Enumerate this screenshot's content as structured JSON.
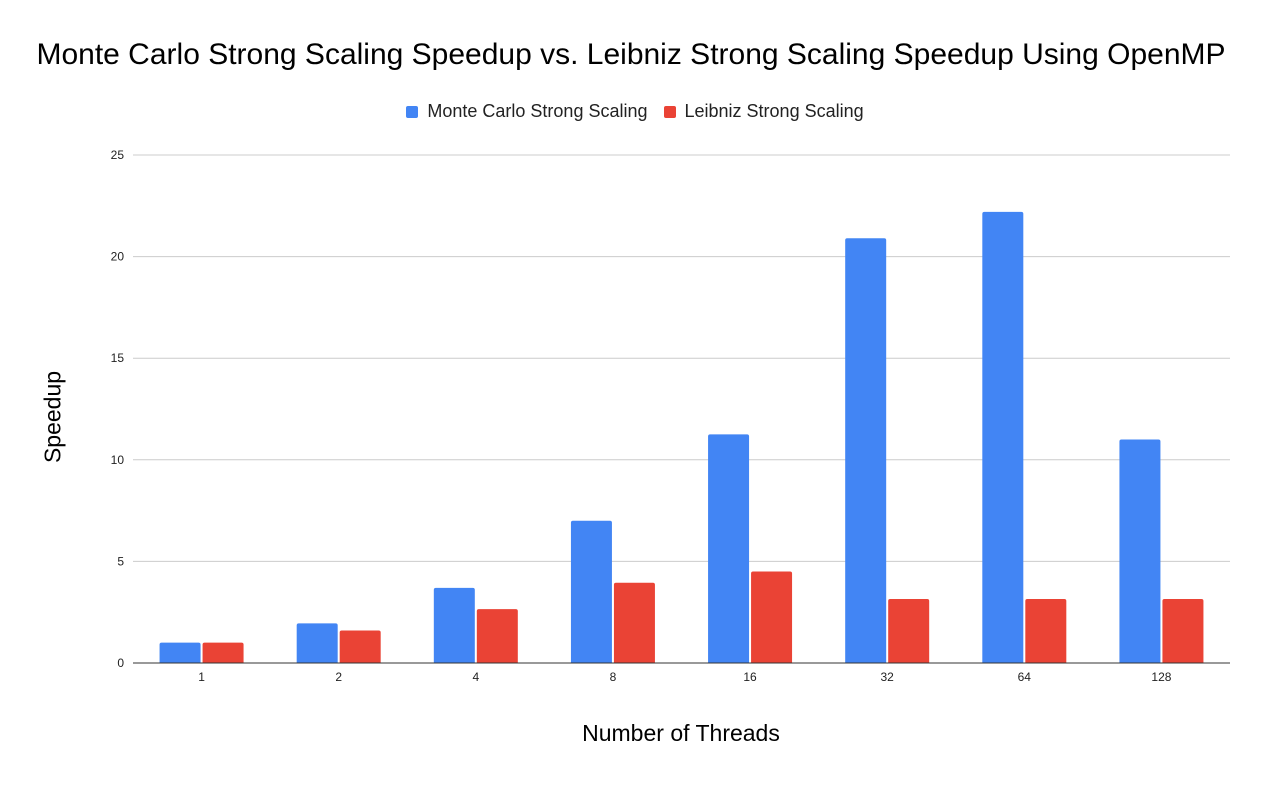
{
  "chart_data": {
    "type": "bar",
    "title": "Monte Carlo Strong Scaling Speedup vs. Leibniz Strong Scaling Speedup Using OpenMP",
    "xlabel": "Number of Threads",
    "ylabel": "Speedup",
    "categories": [
      "1",
      "2",
      "4",
      "8",
      "16",
      "32",
      "64",
      "128"
    ],
    "series": [
      {
        "name": "Monte Carlo Strong Scaling",
        "color": "#4285f4",
        "values": [
          1.0,
          1.95,
          3.7,
          7.0,
          11.25,
          20.9,
          22.2,
          11.0
        ]
      },
      {
        "name": "Leibniz Strong Scaling",
        "color": "#ea4335",
        "values": [
          1.0,
          1.6,
          2.65,
          3.95,
          4.5,
          3.15,
          3.15,
          3.15
        ]
      }
    ],
    "ylim": [
      0,
      25
    ],
    "yticks": [
      0,
      5,
      10,
      15,
      20,
      25
    ],
    "grid": true,
    "legend": "top-center"
  }
}
